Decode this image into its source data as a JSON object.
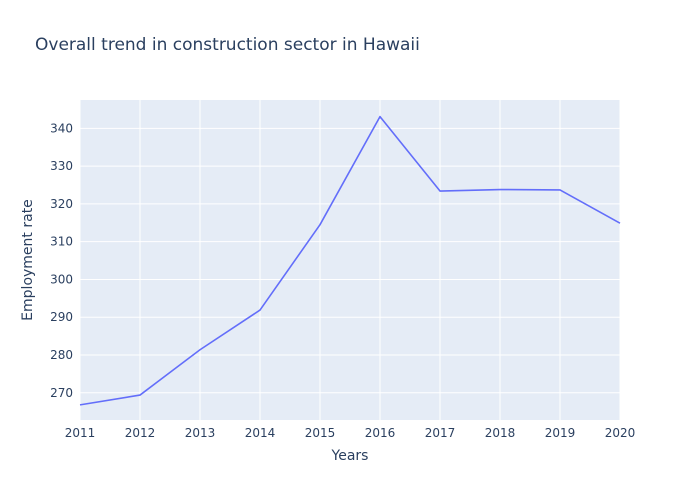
{
  "chart_data": {
    "type": "line",
    "title": "Overall trend in construction sector in Hawaii",
    "xlabel": "Years",
    "ylabel": "Employment rate",
    "x": [
      2011,
      2012,
      2013,
      2014,
      2015,
      2016,
      2017,
      2018,
      2019,
      2020
    ],
    "series": [
      {
        "values": [
          266.8,
          269.4,
          281.4,
          291.9,
          314.5,
          343.1,
          323.4,
          323.8,
          323.7,
          314.9
        ]
      }
    ],
    "xlim": [
      2011,
      2020
    ],
    "ylim": [
      262.8,
      347.5
    ],
    "xticks": [
      "2011",
      "2012",
      "2013",
      "2014",
      "2015",
      "2016",
      "2017",
      "2018",
      "2019",
      "2020"
    ],
    "yticks": [
      270,
      280,
      290,
      300,
      310,
      320,
      330,
      340
    ],
    "grid": true,
    "legend": "none",
    "colors": {
      "plot_bg": "#e5ecf6",
      "grid": "#ffffff",
      "line": "#636efa",
      "text": "#2a3f5f"
    }
  }
}
